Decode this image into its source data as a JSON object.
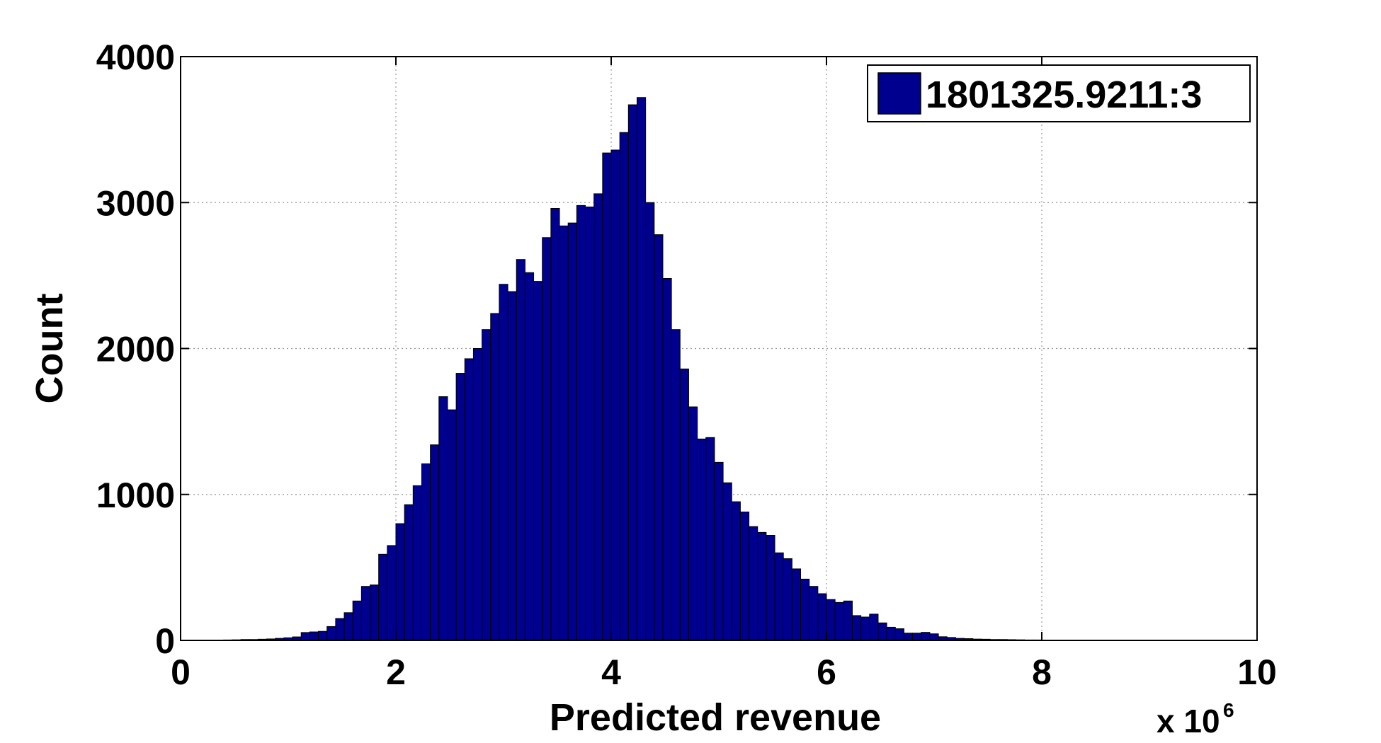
{
  "chart_data": {
    "type": "bar",
    "xlabel": "Predicted revenue",
    "ylabel": "Count",
    "x_multiplier_label": "x 10",
    "x_multiplier_exponent": "6",
    "xlim": [
      0,
      10
    ],
    "ylim": [
      0,
      4000
    ],
    "xticks": [
      "0",
      "2",
      "4",
      "6",
      "8",
      "10"
    ],
    "yticks": [
      "0",
      "1000",
      "2000",
      "3000",
      "4000"
    ],
    "grid": true,
    "legend": {
      "placement": "top-right",
      "entries": [
        "1801325.9211:3"
      ]
    },
    "bar_color": "#00008f",
    "bin_width": 0.08,
    "bin_starts": [
      0.0,
      0.08,
      0.16,
      0.24,
      0.32,
      0.4,
      0.48,
      0.56,
      0.64,
      0.72,
      0.8,
      0.88,
      0.96,
      1.04,
      1.12,
      1.2,
      1.28,
      1.36,
      1.44,
      1.52,
      1.6,
      1.68,
      1.76,
      1.84,
      1.92,
      2.0,
      2.08,
      2.16,
      2.24,
      2.32,
      2.4,
      2.48,
      2.56,
      2.64,
      2.72,
      2.8,
      2.88,
      2.96,
      3.04,
      3.12,
      3.2,
      3.28,
      3.36,
      3.44,
      3.52,
      3.6,
      3.68,
      3.76,
      3.84,
      3.92,
      4.0,
      4.08,
      4.16,
      4.24,
      4.32,
      4.4,
      4.48,
      4.56,
      4.64,
      4.72,
      4.8,
      4.88,
      4.96,
      5.04,
      5.12,
      5.2,
      5.28,
      5.36,
      5.44,
      5.52,
      5.6,
      5.68,
      5.76,
      5.84,
      5.92,
      6.0,
      6.08,
      6.16,
      6.24,
      6.32,
      6.4,
      6.48,
      6.56,
      6.64,
      6.72,
      6.8,
      6.88,
      6.96,
      7.04,
      7.12,
      7.2,
      7.28,
      7.36,
      7.44,
      7.52,
      7.6,
      7.68,
      7.76,
      7.84,
      7.92,
      8.0,
      8.08,
      8.16,
      8.24,
      8.32,
      8.4,
      8.48,
      8.56,
      8.64,
      8.72,
      8.8,
      8.88,
      8.96,
      9.04,
      9.12,
      9.2,
      9.28,
      9.36
    ],
    "values": [
      1,
      1,
      1,
      2,
      2,
      3,
      4,
      6,
      6,
      8,
      10,
      14,
      18,
      24,
      54,
      58,
      62,
      95,
      150,
      190,
      270,
      370,
      380,
      590,
      650,
      800,
      930,
      1060,
      1210,
      1340,
      1670,
      1580,
      1830,
      1930,
      2000,
      2130,
      2240,
      2440,
      2390,
      2610,
      2520,
      2460,
      2760,
      2960,
      2840,
      2860,
      2980,
      2970,
      3060,
      3340,
      3360,
      3480,
      3670,
      3720,
      3000,
      2780,
      2480,
      2130,
      1860,
      1600,
      1380,
      1390,
      1220,
      1080,
      950,
      880,
      780,
      740,
      720,
      600,
      560,
      490,
      420,
      370,
      320,
      280,
      260,
      270,
      170,
      160,
      180,
      120,
      90,
      80,
      50,
      50,
      55,
      45,
      25,
      20,
      14,
      12,
      9,
      8,
      6,
      6,
      5,
      4,
      3,
      3,
      2,
      2,
      1,
      1,
      1,
      1,
      1,
      1,
      1,
      1,
      1,
      1,
      1,
      1,
      1,
      1,
      1,
      1
    ]
  }
}
